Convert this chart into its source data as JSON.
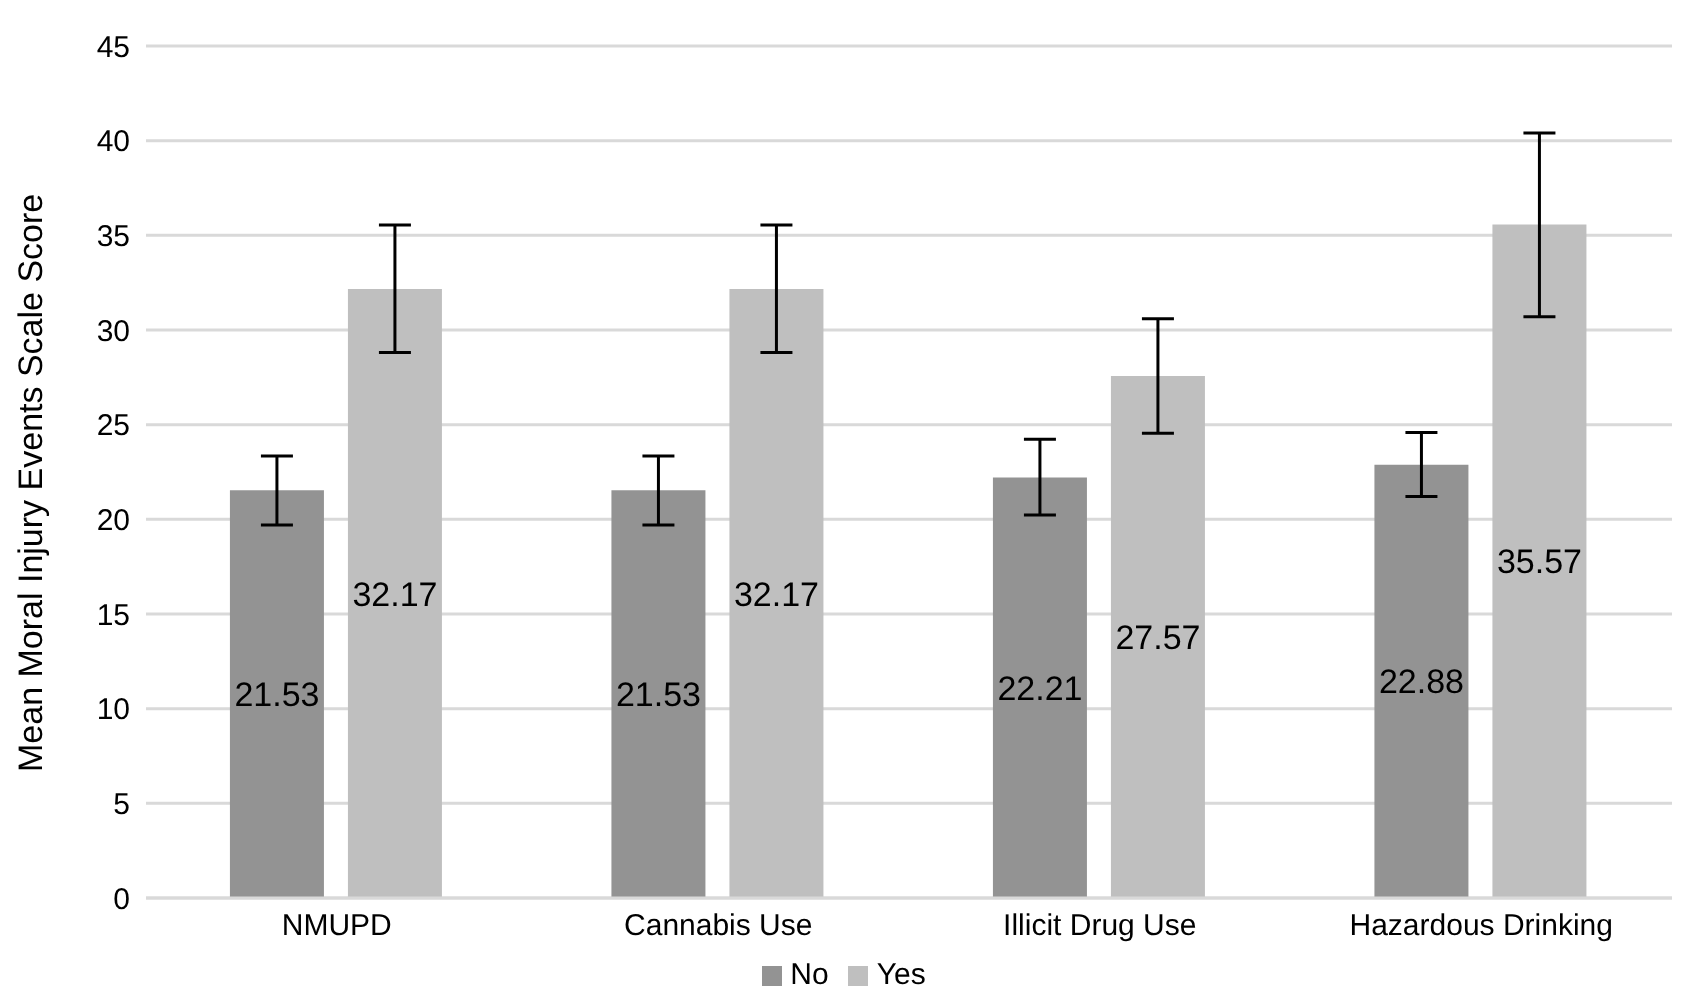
{
  "chart_data": {
    "type": "bar",
    "ylabel": "Mean Moral Injury Events Scale Score",
    "categories": [
      "NMUPD",
      "Cannabis Use",
      "Illicit Drug Use",
      "Hazardous Drinking"
    ],
    "series": [
      {
        "name": "No",
        "color": "#939393",
        "values": [
          21.53,
          21.53,
          22.21,
          22.88
        ],
        "errors": [
          [
            19.7,
            23.35
          ],
          [
            19.7,
            23.35
          ],
          [
            20.23,
            24.23
          ],
          [
            21.21,
            24.59
          ]
        ]
      },
      {
        "name": "Yes",
        "color": "#bfbfbf",
        "values": [
          32.17,
          32.17,
          27.57,
          35.57
        ],
        "errors": [
          [
            28.81,
            35.54
          ],
          [
            28.81,
            35.54
          ],
          [
            24.55,
            30.59
          ],
          [
            30.7,
            40.41
          ]
        ]
      }
    ],
    "ylim": [
      0,
      45
    ],
    "yticks": [
      0,
      5,
      10,
      15,
      20,
      25,
      30,
      35,
      40,
      45
    ],
    "grid": "y",
    "legend": "bottom",
    "data_labels": true
  }
}
